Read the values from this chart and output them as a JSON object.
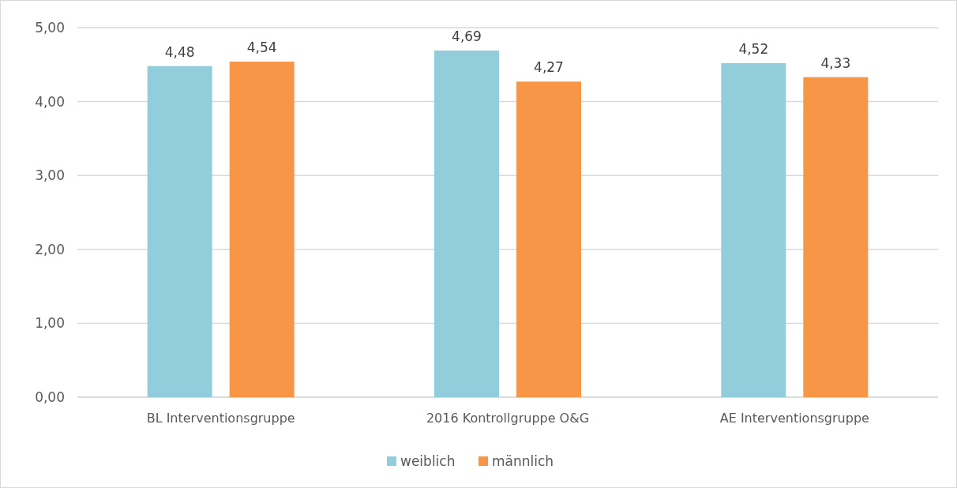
{
  "chart_data": {
    "type": "bar",
    "categories": [
      "BL Interventionsgruppe",
      "2016 Kontrollgruppe O&G",
      "AE Interventionsgruppe"
    ],
    "series": [
      {
        "name": "weiblich",
        "color": "#92cddc",
        "values": [
          4.48,
          4.69,
          4.52
        ],
        "value_labels": [
          "4,48",
          "4,69",
          "4,52"
        ]
      },
      {
        "name": "männlich",
        "color": "#f79646",
        "values": [
          4.54,
          4.27,
          4.33
        ],
        "value_labels": [
          "4,54",
          "4,27",
          "4,33"
        ]
      }
    ],
    "ylim": [
      0,
      5
    ],
    "yticks": [
      {
        "value": 0,
        "label": "0,00"
      },
      {
        "value": 1,
        "label": "1,00"
      },
      {
        "value": 2,
        "label": "2,00"
      },
      {
        "value": 3,
        "label": "3,00"
      },
      {
        "value": 4,
        "label": "4,00"
      },
      {
        "value": 5,
        "label": "5,00"
      }
    ],
    "grid": "y",
    "legend": "bottom"
  }
}
